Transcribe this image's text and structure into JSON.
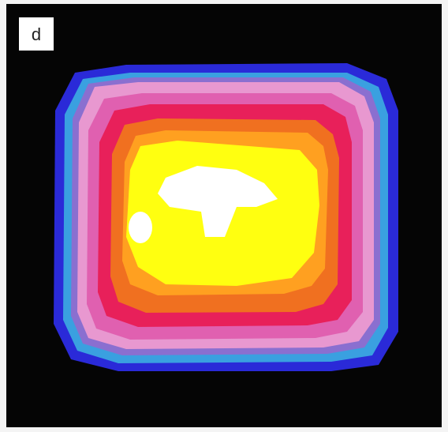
{
  "panel_label": "d"
}
